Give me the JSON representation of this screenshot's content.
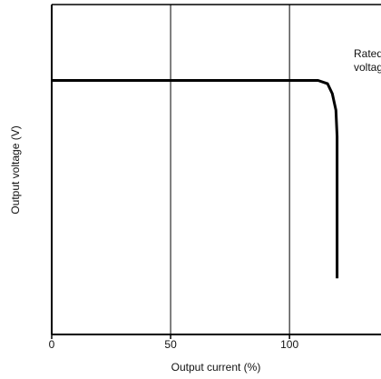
{
  "chart_data": {
    "type": "line",
    "x_label": "Output current (%)",
    "y_label": "Output voltage (V)",
    "annotation": [
      "Rated",
      "voltage"
    ],
    "x": [
      0,
      112,
      116,
      118,
      119.5,
      120,
      120
    ],
    "values": [
      77,
      77,
      76,
      73,
      68,
      60,
      17
    ],
    "color": "#000000",
    "xlim": [
      0,
      140
    ],
    "xticks": [
      0,
      50,
      100
    ],
    "ylim": [
      0,
      100
    ],
    "grid": true
  }
}
